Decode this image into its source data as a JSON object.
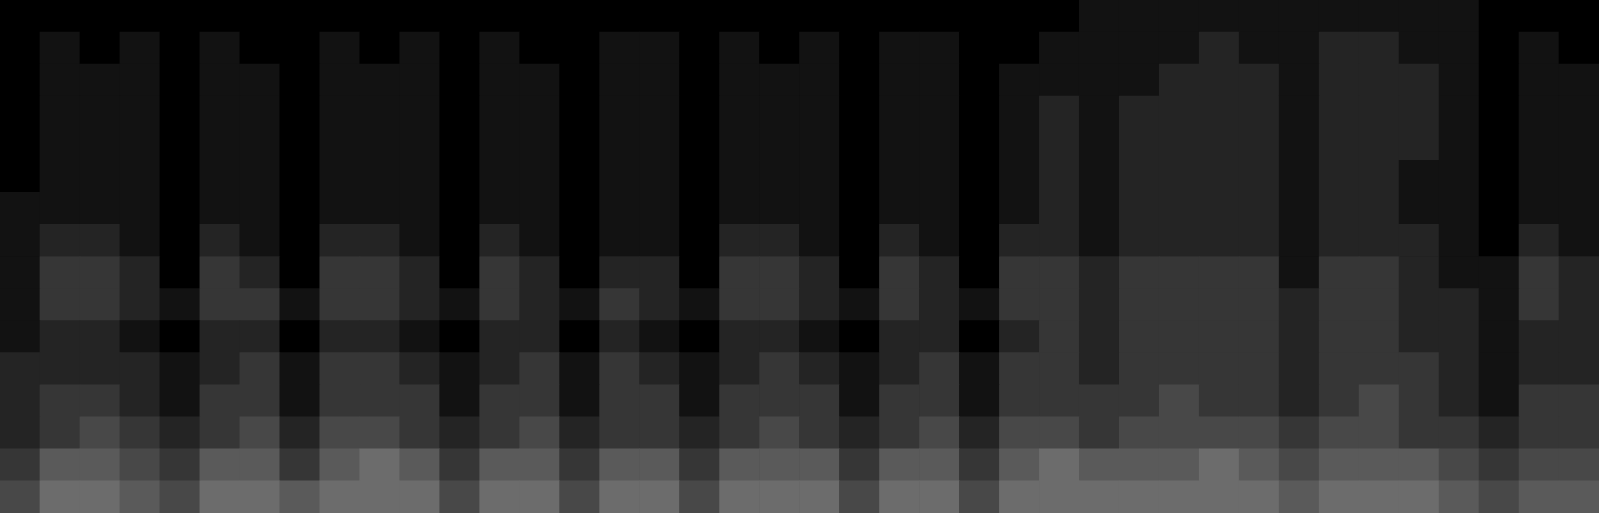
{
  "chart_data": {
    "type": "heatmap",
    "tick_labels": false,
    "grid": false,
    "color": "#b4b4b4",
    "zlim": [
      0,
      10
    ],
    "cells": [
      [
        0,
        0,
        0,
        0,
        0,
        0,
        0,
        0,
        0,
        0,
        0,
        0,
        0,
        0,
        0,
        0,
        0,
        0,
        0,
        0,
        0,
        0,
        0,
        0,
        0,
        0,
        0,
        1,
        1,
        1,
        1,
        1,
        1,
        1,
        1,
        1,
        1,
        0,
        0,
        0
      ],
      [
        0,
        1,
        0,
        1,
        0,
        1,
        0,
        0,
        1,
        0,
        1,
        0,
        1,
        0,
        0,
        1,
        1,
        0,
        1,
        0,
        1,
        0,
        1,
        1,
        0,
        0,
        1,
        1,
        1,
        1,
        2,
        1,
        1,
        2,
        2,
        1,
        1,
        0,
        1,
        0
      ],
      [
        0,
        1,
        1,
        1,
        0,
        1,
        1,
        0,
        1,
        1,
        1,
        0,
        1,
        1,
        0,
        1,
        1,
        0,
        1,
        1,
        1,
        0,
        1,
        1,
        0,
        1,
        1,
        1,
        1,
        2,
        2,
        2,
        1,
        2,
        2,
        2,
        1,
        0,
        1,
        1
      ],
      [
        0,
        1,
        1,
        1,
        0,
        1,
        1,
        0,
        1,
        1,
        1,
        0,
        1,
        1,
        0,
        1,
        1,
        0,
        1,
        1,
        1,
        0,
        1,
        1,
        0,
        1,
        2,
        1,
        2,
        2,
        2,
        2,
        1,
        2,
        2,
        2,
        1,
        0,
        1,
        1
      ],
      [
        0,
        1,
        1,
        1,
        0,
        1,
        1,
        0,
        1,
        1,
        1,
        0,
        1,
        1,
        0,
        1,
        1,
        0,
        1,
        1,
        1,
        0,
        1,
        1,
        0,
        1,
        2,
        1,
        2,
        2,
        2,
        2,
        1,
        2,
        2,
        2,
        1,
        0,
        1,
        1
      ],
      [
        0,
        1,
        1,
        1,
        0,
        1,
        1,
        0,
        1,
        1,
        1,
        0,
        1,
        1,
        0,
        1,
        1,
        0,
        1,
        1,
        1,
        0,
        1,
        1,
        0,
        1,
        2,
        1,
        2,
        2,
        2,
        2,
        1,
        2,
        2,
        1,
        1,
        0,
        1,
        1
      ],
      [
        1,
        1,
        1,
        1,
        0,
        1,
        1,
        0,
        1,
        1,
        1,
        0,
        1,
        1,
        0,
        1,
        1,
        0,
        1,
        1,
        1,
        0,
        1,
        1,
        0,
        1,
        2,
        1,
        2,
        2,
        2,
        2,
        1,
        2,
        2,
        1,
        1,
        0,
        1,
        1
      ],
      [
        1,
        2,
        2,
        1,
        0,
        2,
        1,
        0,
        2,
        2,
        1,
        0,
        2,
        1,
        0,
        1,
        1,
        0,
        2,
        2,
        1,
        0,
        2,
        1,
        0,
        2,
        2,
        1,
        2,
        2,
        2,
        2,
        1,
        2,
        2,
        2,
        1,
        0,
        2,
        1
      ],
      [
        1,
        3,
        3,
        2,
        0,
        3,
        2,
        0,
        3,
        3,
        2,
        0,
        3,
        2,
        0,
        2,
        2,
        0,
        3,
        3,
        2,
        0,
        3,
        2,
        0,
        3,
        3,
        2,
        3,
        3,
        3,
        3,
        1,
        3,
        3,
        2,
        1,
        1,
        3,
        2
      ],
      [
        1,
        3,
        3,
        2,
        1,
        3,
        3,
        1,
        3,
        3,
        2,
        1,
        3,
        2,
        1,
        3,
        2,
        1,
        3,
        3,
        2,
        1,
        3,
        2,
        1,
        3,
        3,
        2,
        3,
        3,
        3,
        3,
        2,
        3,
        3,
        2,
        2,
        1,
        3,
        2
      ],
      [
        1,
        2,
        2,
        1,
        0,
        2,
        2,
        0,
        2,
        2,
        1,
        0,
        2,
        2,
        0,
        2,
        1,
        0,
        2,
        2,
        1,
        0,
        2,
        2,
        0,
        2,
        3,
        2,
        3,
        3,
        3,
        3,
        2,
        3,
        3,
        2,
        2,
        1,
        2,
        2
      ],
      [
        2,
        2,
        2,
        2,
        1,
        2,
        3,
        1,
        3,
        3,
        2,
        1,
        2,
        3,
        1,
        3,
        2,
        1,
        2,
        3,
        2,
        1,
        2,
        3,
        1,
        3,
        3,
        2,
        3,
        3,
        3,
        3,
        2,
        3,
        3,
        3,
        2,
        1,
        2,
        2
      ],
      [
        2,
        3,
        3,
        2,
        1,
        3,
        3,
        1,
        3,
        3,
        3,
        1,
        3,
        3,
        1,
        3,
        3,
        1,
        3,
        3,
        3,
        1,
        3,
        3,
        1,
        3,
        3,
        3,
        3,
        4,
        3,
        3,
        2,
        3,
        4,
        3,
        2,
        1,
        3,
        3
      ],
      [
        2,
        3,
        4,
        3,
        2,
        3,
        4,
        2,
        4,
        4,
        3,
        2,
        3,
        4,
        2,
        3,
        3,
        2,
        3,
        4,
        3,
        2,
        3,
        4,
        2,
        4,
        4,
        3,
        4,
        4,
        4,
        4,
        3,
        4,
        4,
        3,
        3,
        2,
        3,
        3
      ],
      [
        3,
        5,
        5,
        4,
        3,
        5,
        5,
        3,
        5,
        6,
        5,
        3,
        5,
        5,
        3,
        5,
        5,
        3,
        5,
        5,
        5,
        3,
        5,
        5,
        3,
        5,
        6,
        5,
        5,
        5,
        6,
        5,
        4,
        5,
        5,
        5,
        4,
        3,
        4,
        4
      ],
      [
        4,
        6,
        6,
        5,
        4,
        6,
        6,
        5,
        6,
        6,
        6,
        4,
        6,
        6,
        4,
        6,
        6,
        4,
        6,
        6,
        6,
        4,
        6,
        6,
        4,
        6,
        6,
        6,
        6,
        6,
        6,
        6,
        5,
        6,
        6,
        6,
        5,
        4,
        5,
        5
      ]
    ]
  }
}
